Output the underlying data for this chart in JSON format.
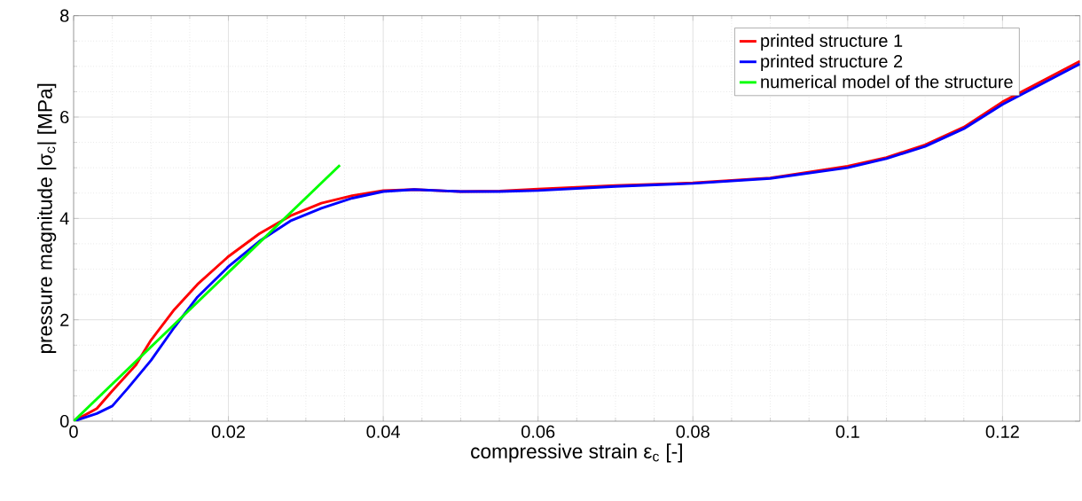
{
  "chart_data": {
    "type": "line",
    "xlabel": "compressive strain ε$_{c}$ [-]",
    "ylabel": "pressure magnitude |σ$_{c}$| [MPa]",
    "xlim": [
      0,
      0.13
    ],
    "ylim": [
      0,
      8
    ],
    "xticks": [
      0,
      0.02,
      0.04,
      0.06,
      0.08,
      0.1,
      0.12
    ],
    "yticks": [
      0,
      2,
      4,
      6,
      8
    ],
    "grid": true,
    "legend": "top right",
    "line_style": "solid",
    "marker": "none",
    "series": [
      {
        "name": "printed structure 1",
        "color": "#ff0000",
        "x": [
          0,
          0.003,
          0.005,
          0.008,
          0.01,
          0.013,
          0.016,
          0.02,
          0.024,
          0.028,
          0.032,
          0.036,
          0.04,
          0.044,
          0.05,
          0.055,
          0.06,
          0.07,
          0.08,
          0.09,
          0.1,
          0.105,
          0.11,
          0.115,
          0.12,
          0.125,
          0.13
        ],
        "values": [
          0,
          0.25,
          0.6,
          1.1,
          1.6,
          2.2,
          2.7,
          3.25,
          3.7,
          4.05,
          4.3,
          4.45,
          4.55,
          4.57,
          4.53,
          4.54,
          4.58,
          4.65,
          4.7,
          4.8,
          5.03,
          5.2,
          5.45,
          5.8,
          6.3,
          6.7,
          7.1
        ]
      },
      {
        "name": "printed structure 2",
        "color": "#0000ff",
        "x": [
          0,
          0.003,
          0.005,
          0.007,
          0.01,
          0.013,
          0.016,
          0.02,
          0.024,
          0.028,
          0.032,
          0.036,
          0.04,
          0.044,
          0.05,
          0.055,
          0.06,
          0.07,
          0.08,
          0.09,
          0.1,
          0.105,
          0.11,
          0.115,
          0.12,
          0.125,
          0.13
        ],
        "values": [
          0,
          0.15,
          0.3,
          0.65,
          1.2,
          1.85,
          2.45,
          3.05,
          3.55,
          3.95,
          4.2,
          4.4,
          4.53,
          4.57,
          4.53,
          4.53,
          4.55,
          4.63,
          4.69,
          4.79,
          5.0,
          5.18,
          5.42,
          5.77,
          6.25,
          6.65,
          7.05
        ]
      },
      {
        "name": "numerical model of the structure",
        "color": "#00ff00",
        "x": [
          0,
          0.0344
        ],
        "values": [
          0,
          5.05
        ]
      }
    ]
  }
}
